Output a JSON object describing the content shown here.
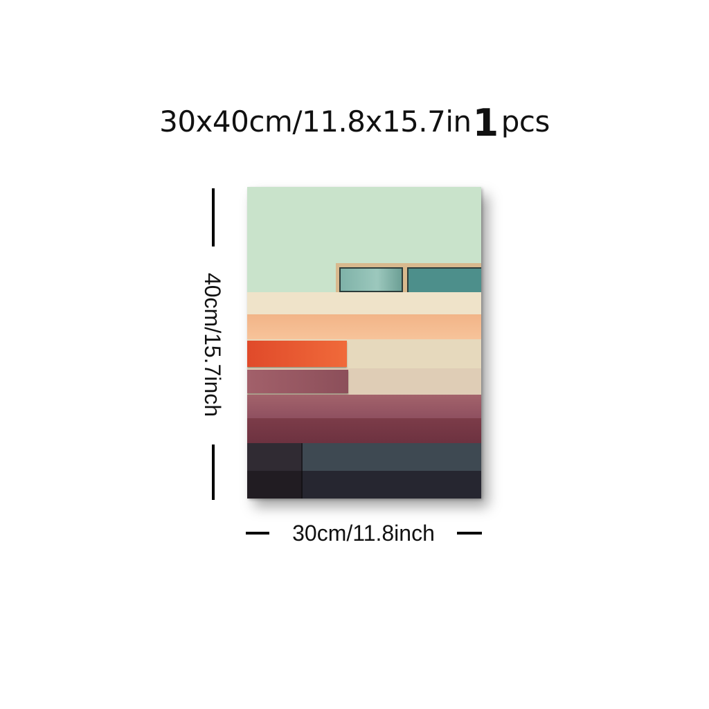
{
  "header": {
    "size_text": "30x40cm/11.8x15.7in",
    "quantity": "1",
    "unit": "pcs"
  },
  "dimensions": {
    "height_label": "40cm/15.7inch",
    "width_label": "30cm/11.8inch"
  },
  "colors": {
    "sky": "#c9e3cb",
    "cream": "#efe3c9",
    "peach": "#f4b98a",
    "red_orange": "#e2552f",
    "mauve": "#9c5d66",
    "wine": "#7a3b47",
    "slate": "#3f4a52",
    "dark": "#2b2630"
  }
}
